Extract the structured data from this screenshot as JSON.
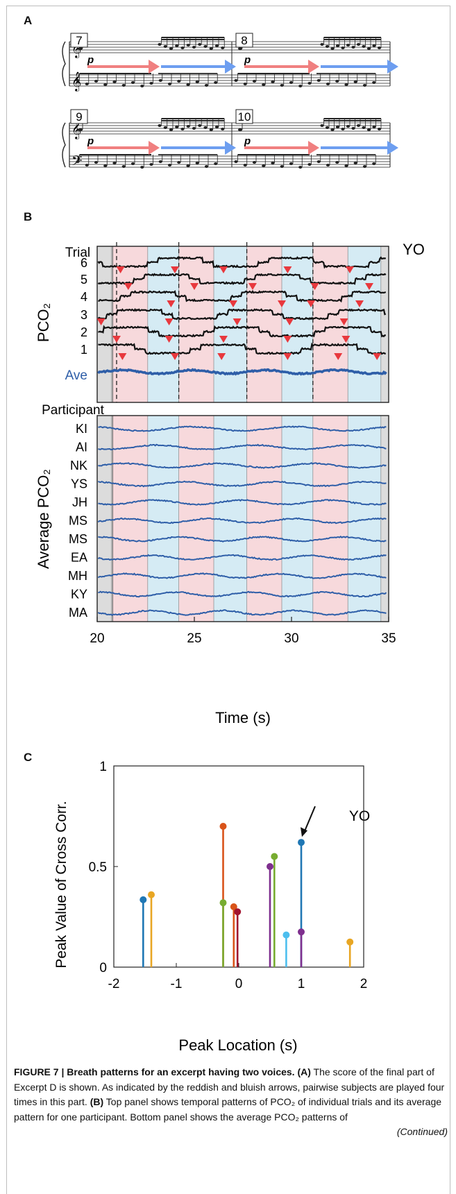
{
  "panels": {
    "a": {
      "letter": "A",
      "measures": [
        "7",
        "8",
        "9",
        "10"
      ],
      "dynamic": "p"
    },
    "b": {
      "letter": "B",
      "corner_label": "YO",
      "trial_header": "Trial",
      "trials": [
        "6",
        "5",
        "4",
        "3",
        "2",
        "1"
      ],
      "ave_label": "Ave",
      "ylabel_top": "PCO₂",
      "participant_header": "Participant",
      "participants": [
        "KI",
        "AI",
        "NK",
        "YS",
        "JH",
        "MS",
        "MS",
        "EA",
        "MH",
        "KY",
        "MA"
      ],
      "ylabel_bottom": "Average PCO₂",
      "xticks": [
        "20",
        "25",
        "30",
        "35"
      ],
      "xlabel": "Time (s)",
      "colors": {
        "pink": "#f7d9dc",
        "blue": "#d5ebf4",
        "gray": "#dcdcdc",
        "trace": "#111111",
        "ave": "#2e5ea8",
        "marker": "#e8383d"
      }
    },
    "c": {
      "letter": "C",
      "ylabel": "Peak Value of Cross Corr.",
      "xlabel": "Peak Location (s)",
      "annotation": "YO"
    }
  },
  "chart_data": {
    "type": "scatter",
    "title": "",
    "xlabel": "Peak Location (s)",
    "ylabel": "Peak Value of Cross Corr.",
    "xlim": [
      -2,
      2
    ],
    "ylim": [
      0,
      1
    ],
    "xticks": [
      "-2",
      "-1",
      "0",
      "1",
      "2"
    ],
    "yticks": [
      "0",
      "0.5",
      "1"
    ],
    "points": [
      {
        "x": -1.53,
        "y": 0.335,
        "color": "#1f77b4"
      },
      {
        "x": -1.4,
        "y": 0.36,
        "color": "#e8a623"
      },
      {
        "x": -0.25,
        "y": 0.7,
        "color": "#d95319"
      },
      {
        "x": -0.25,
        "y": 0.32,
        "color": "#77ac30"
      },
      {
        "x": -0.08,
        "y": 0.3,
        "color": "#d95319"
      },
      {
        "x": -0.02,
        "y": 0.275,
        "color": "#a2142f"
      },
      {
        "x": 0.5,
        "y": 0.5,
        "color": "#7e2f8e"
      },
      {
        "x": 0.57,
        "y": 0.55,
        "color": "#77ac30"
      },
      {
        "x": 0.76,
        "y": 0.16,
        "color": "#4dbeee"
      },
      {
        "x": 1.0,
        "y": 0.62,
        "color": "#1f77b4"
      },
      {
        "x": 1.0,
        "y": 0.175,
        "color": "#7e2f8e"
      },
      {
        "x": 1.78,
        "y": 0.125,
        "color": "#e8a623"
      }
    ]
  },
  "caption": {
    "lead": "FIGURE 7 | Breath patterns for an excerpt having two voices.",
    "a_label": "(A)",
    "a_text": " The score of the final part of Excerpt D is shown. As indicated by the reddish and bluish arrows, pairwise subjects are played four times in this part. ",
    "b_label": "(B)",
    "b_text": " Top panel shows temporal patterns of PCO₂ of individual trials and its average pattern for one participant. Bottom panel shows the average PCO₂ patterns of",
    "continued": "(Continued)"
  }
}
